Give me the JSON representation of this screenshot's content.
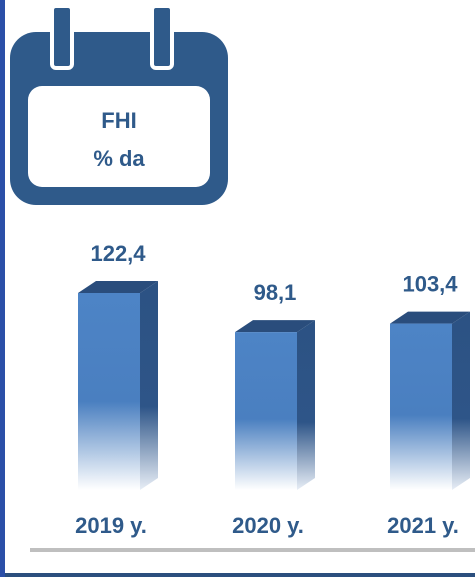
{
  "chart_data": {
    "type": "bar3d",
    "title": "FHI",
    "subtitle": "% da",
    "categories": [
      "2019 y.",
      "2020 y.",
      "2021 y."
    ],
    "values": [
      122.4,
      98.1,
      103.4
    ],
    "value_labels": [
      "122,4",
      "98,1",
      "103,4"
    ],
    "color": "#4a7fc0"
  }
}
